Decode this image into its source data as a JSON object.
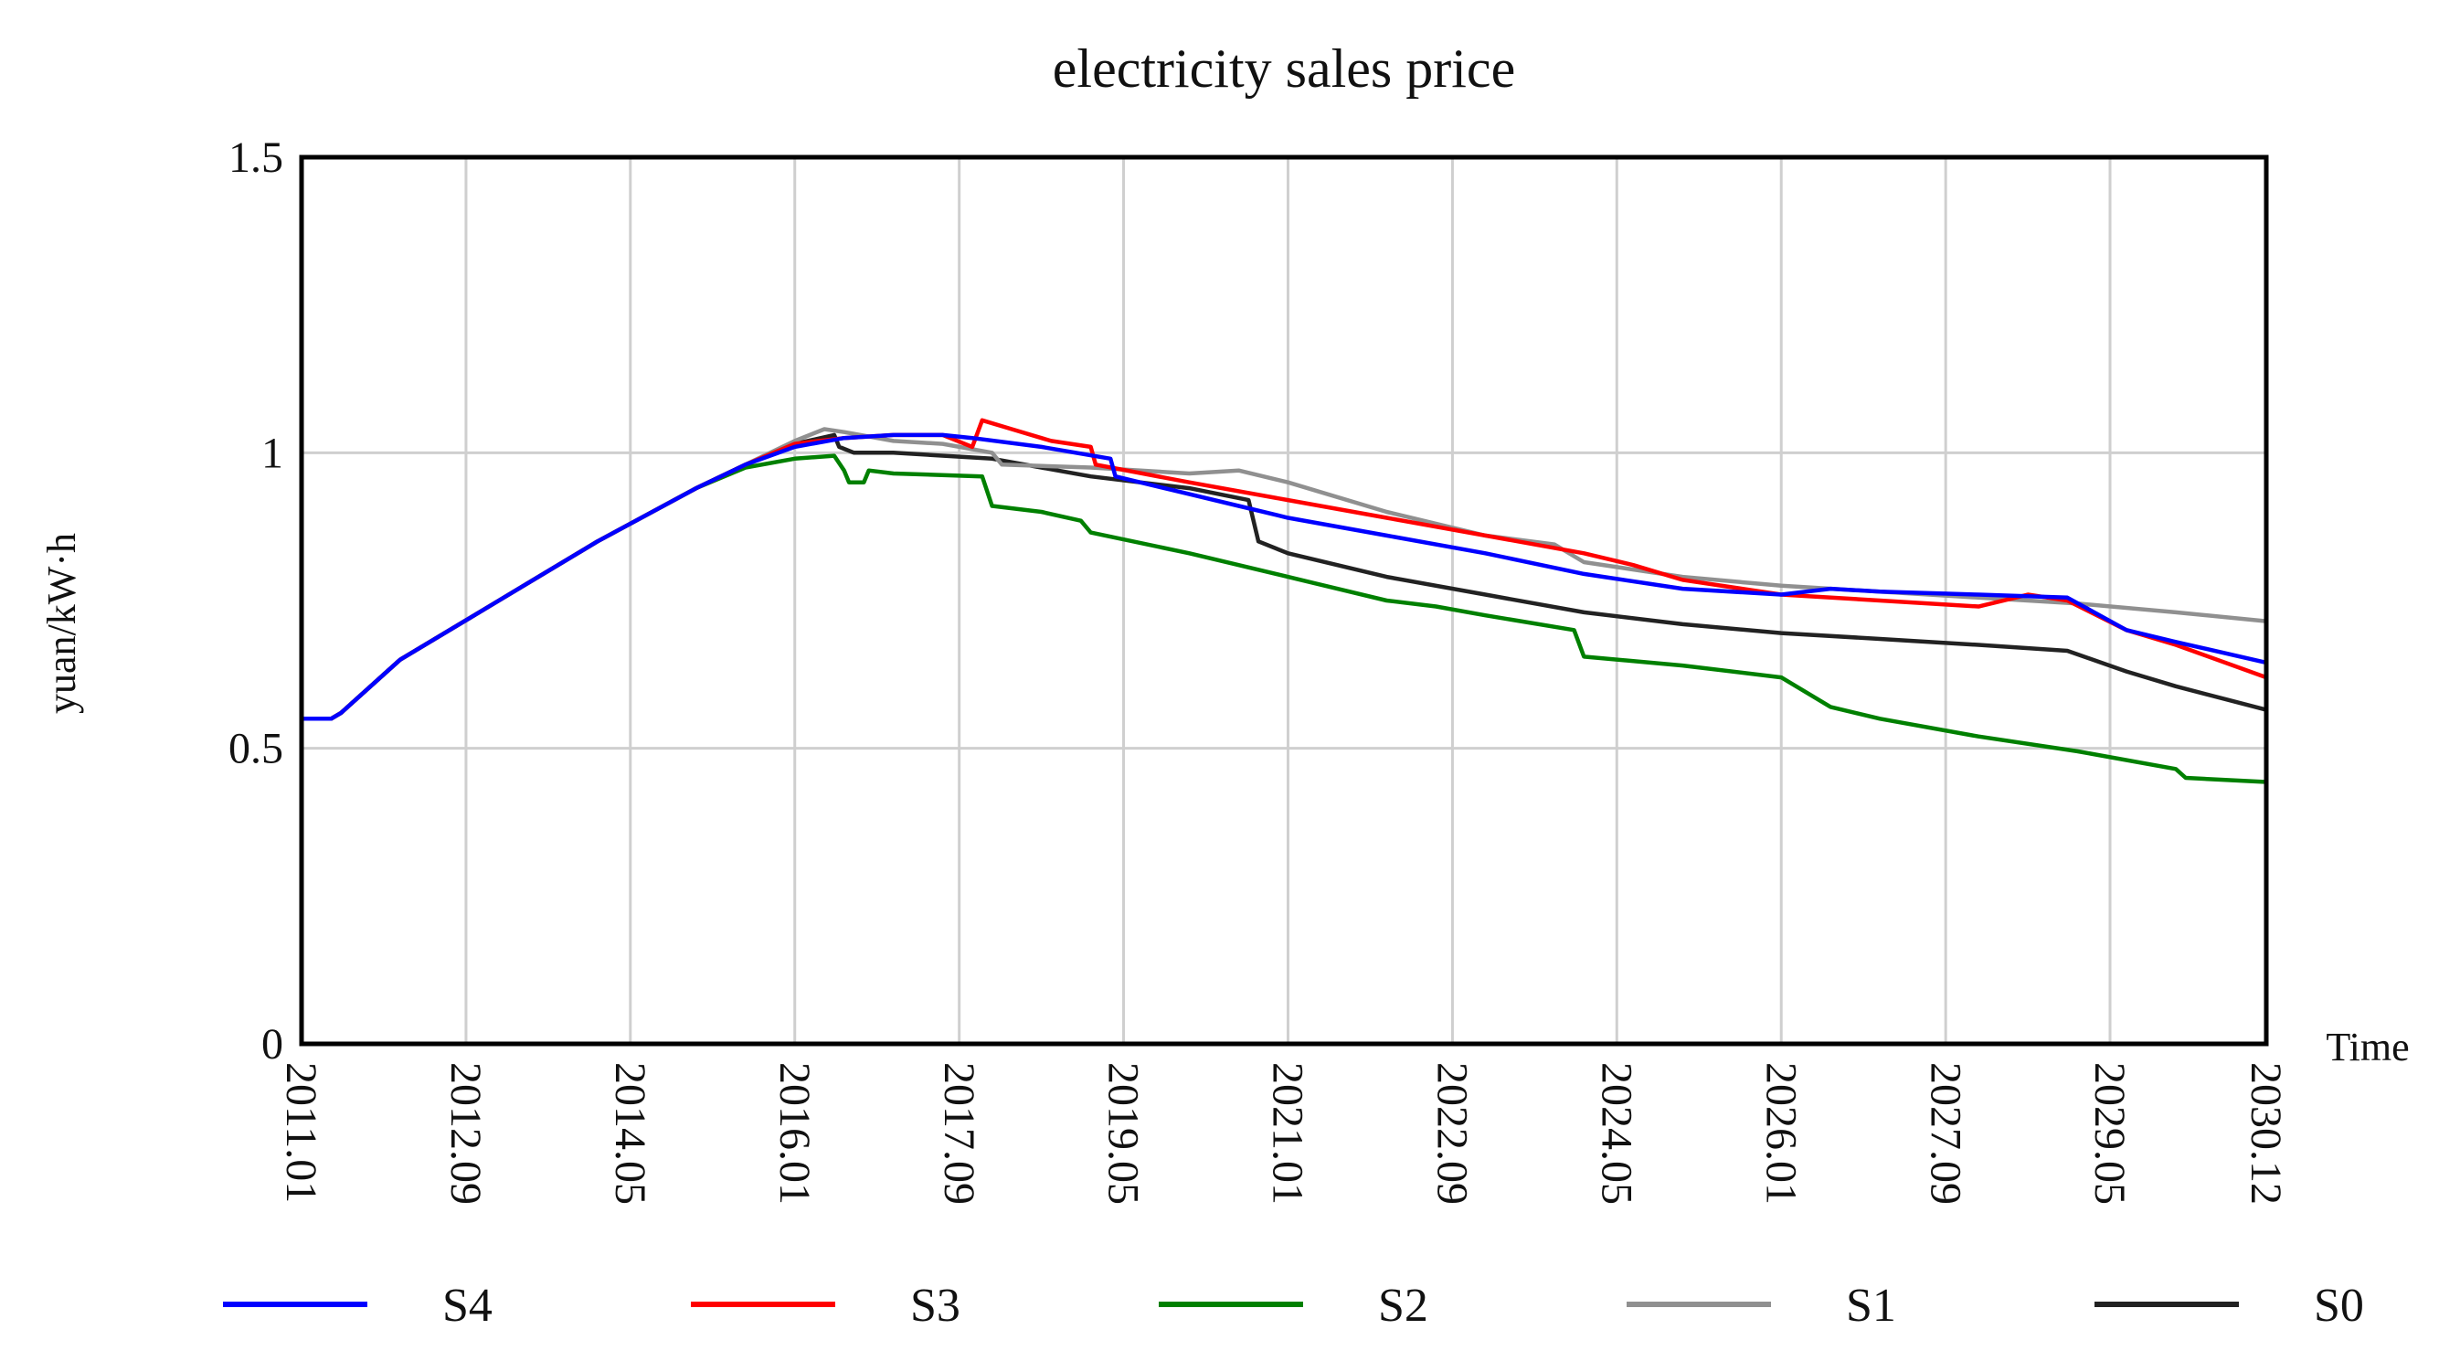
{
  "chart_data": {
    "type": "line",
    "title": "electricity sales price",
    "xlabel": "Time",
    "ylabel": "yuan/kW·h",
    "ylim": [
      0,
      1.5
    ],
    "xlim": [
      2011.0,
      2030.917
    ],
    "y_ticks": [
      {
        "value": 0,
        "label": "0"
      },
      {
        "value": 0.5,
        "label": "0.5"
      },
      {
        "value": 1,
        "label": "1"
      },
      {
        "value": 1.5,
        "label": "1.5"
      }
    ],
    "x_ticks": [
      {
        "value": 2011.0,
        "label": "2011.01"
      },
      {
        "value": 2012.667,
        "label": "2012.09"
      },
      {
        "value": 2014.333,
        "label": "2014.05"
      },
      {
        "value": 2016.0,
        "label": "2016.01"
      },
      {
        "value": 2017.667,
        "label": "2017.09"
      },
      {
        "value": 2019.333,
        "label": "2019.05"
      },
      {
        "value": 2021.0,
        "label": "2021.01"
      },
      {
        "value": 2022.667,
        "label": "2022.09"
      },
      {
        "value": 2024.333,
        "label": "2024.05"
      },
      {
        "value": 2026.0,
        "label": "2026.01"
      },
      {
        "value": 2027.667,
        "label": "2027.09"
      },
      {
        "value": 2029.333,
        "label": "2029.05"
      },
      {
        "value": 2030.917,
        "label": "2030.12"
      }
    ],
    "grid": true,
    "legend_position": "bottom",
    "series": [
      {
        "name": "S4",
        "color": "#0000ff",
        "x": [
          2011.0,
          2011.3,
          2011.4,
          2012.0,
          2013.0,
          2014.0,
          2015.0,
          2015.5,
          2016.0,
          2016.5,
          2017.0,
          2017.5,
          2017.8,
          2018.5,
          2019.2,
          2019.25,
          2020.0,
          2020.5,
          2021.0,
          2022.0,
          2023.0,
          2024.0,
          2025.0,
          2026.0,
          2026.5,
          2027.0,
          2028.0,
          2028.9,
          2029.5,
          2030.0,
          2030.917
        ],
        "y": [
          0.55,
          0.55,
          0.56,
          0.65,
          0.75,
          0.85,
          0.94,
          0.98,
          1.01,
          1.025,
          1.03,
          1.03,
          1.025,
          1.01,
          0.99,
          0.96,
          0.93,
          0.91,
          0.89,
          0.86,
          0.83,
          0.795,
          0.77,
          0.76,
          0.77,
          0.765,
          0.76,
          0.755,
          0.7,
          0.68,
          0.645
        ]
      },
      {
        "name": "S3",
        "color": "#ff0000",
        "x": [
          2011.0,
          2011.3,
          2011.4,
          2012.0,
          2013.0,
          2014.0,
          2015.0,
          2015.5,
          2016.0,
          2016.5,
          2017.0,
          2017.5,
          2017.8,
          2017.9,
          2018.2,
          2018.6,
          2019.0,
          2019.05,
          2020.0,
          2021.0,
          2022.0,
          2023.0,
          2024.0,
          2024.5,
          2025.0,
          2026.0,
          2027.0,
          2028.0,
          2028.5,
          2028.9,
          2029.5,
          2030.0,
          2030.917
        ],
        "y": [
          0.55,
          0.55,
          0.56,
          0.65,
          0.75,
          0.85,
          0.94,
          0.98,
          1.015,
          1.025,
          1.03,
          1.03,
          1.01,
          1.055,
          1.04,
          1.02,
          1.01,
          0.98,
          0.95,
          0.92,
          0.89,
          0.86,
          0.83,
          0.81,
          0.785,
          0.76,
          0.75,
          0.74,
          0.76,
          0.75,
          0.7,
          0.675,
          0.62
        ]
      },
      {
        "name": "S2",
        "color": "#008000",
        "x": [
          2011.0,
          2011.3,
          2011.4,
          2012.0,
          2013.0,
          2014.0,
          2015.0,
          2015.5,
          2016.0,
          2016.4,
          2016.5,
          2016.55,
          2016.7,
          2016.75,
          2017.0,
          2017.9,
          2018.0,
          2018.5,
          2018.9,
          2019.0,
          2020.0,
          2021.0,
          2021.5,
          2022.0,
          2022.5,
          2023.0,
          2023.9,
          2024.0,
          2025.0,
          2026.0,
          2026.5,
          2027.0,
          2028.0,
          2029.0,
          2030.0,
          2030.1,
          2030.917
        ],
        "y": [
          0.55,
          0.55,
          0.56,
          0.65,
          0.75,
          0.85,
          0.94,
          0.975,
          0.99,
          0.995,
          0.97,
          0.95,
          0.95,
          0.97,
          0.965,
          0.96,
          0.91,
          0.9,
          0.885,
          0.865,
          0.83,
          0.79,
          0.77,
          0.75,
          0.74,
          0.725,
          0.7,
          0.655,
          0.64,
          0.62,
          0.57,
          0.55,
          0.52,
          0.495,
          0.465,
          0.45,
          0.443
        ]
      },
      {
        "name": "S1",
        "color": "#909090",
        "x": [
          2011.0,
          2011.3,
          2011.4,
          2012.0,
          2013.0,
          2014.0,
          2015.0,
          2015.5,
          2016.0,
          2016.3,
          2016.5,
          2017.0,
          2017.5,
          2018.0,
          2018.1,
          2019.0,
          2020.0,
          2020.5,
          2021.0,
          2022.0,
          2023.0,
          2023.7,
          2024.0,
          2025.0,
          2026.0,
          2027.0,
          2028.0,
          2029.0,
          2030.0,
          2030.917
        ],
        "y": [
          0.55,
          0.55,
          0.56,
          0.65,
          0.75,
          0.85,
          0.94,
          0.98,
          1.02,
          1.04,
          1.035,
          1.02,
          1.015,
          1.0,
          0.98,
          0.975,
          0.965,
          0.97,
          0.95,
          0.9,
          0.86,
          0.845,
          0.815,
          0.79,
          0.775,
          0.765,
          0.755,
          0.745,
          0.73,
          0.715
        ]
      },
      {
        "name": "S0",
        "color": "#222222",
        "x": [
          2011.0,
          2011.3,
          2011.4,
          2012.0,
          2013.0,
          2014.0,
          2015.0,
          2015.5,
          2016.0,
          2016.4,
          2016.45,
          2016.6,
          2017.0,
          2018.0,
          2019.0,
          2020.0,
          2020.6,
          2020.7,
          2021.0,
          2022.0,
          2023.0,
          2024.0,
          2025.0,
          2026.0,
          2027.0,
          2028.0,
          2028.9,
          2029.5,
          2030.0,
          2030.917
        ],
        "y": [
          0.55,
          0.55,
          0.56,
          0.65,
          0.75,
          0.85,
          0.94,
          0.98,
          1.015,
          1.03,
          1.01,
          1.0,
          1.0,
          0.99,
          0.96,
          0.94,
          0.92,
          0.85,
          0.83,
          0.79,
          0.76,
          0.73,
          0.71,
          0.695,
          0.685,
          0.675,
          0.665,
          0.63,
          0.605,
          0.565
        ]
      }
    ]
  }
}
